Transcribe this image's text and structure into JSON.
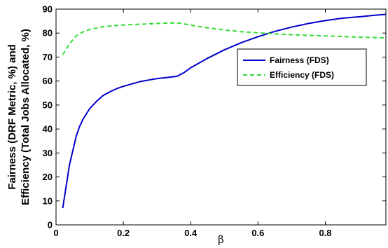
{
  "chart_data": {
    "type": "line",
    "xlabel": "β",
    "ylabel_lines": [
      "Fairness (DRF Metric, %) and",
      "Efficiency (Total Jobs Allocated, %)"
    ],
    "xlim": [
      0,
      0.98
    ],
    "ylim": [
      0,
      90
    ],
    "xticks": [
      0,
      0.2,
      0.4,
      0.6,
      0.8
    ],
    "xtick_labels": [
      "0",
      "0.2",
      "0.4",
      "0.6",
      "0.8"
    ],
    "yticks": [
      0,
      10,
      20,
      30,
      40,
      50,
      60,
      70,
      80,
      90
    ],
    "ytick_labels": [
      "0",
      "10",
      "20",
      "30",
      "40",
      "50",
      "60",
      "70",
      "80",
      "90"
    ],
    "grid": false,
    "legend_position": "right, upper-middle",
    "series": [
      {
        "name": "Fairness (FDS)",
        "color": "#0000cc",
        "style": "solid",
        "x": [
          0.02,
          0.03,
          0.04,
          0.05,
          0.06,
          0.07,
          0.08,
          0.1,
          0.12,
          0.14,
          0.16,
          0.18,
          0.2,
          0.25,
          0.3,
          0.35,
          0.36,
          0.38,
          0.4,
          0.45,
          0.5,
          0.55,
          0.6,
          0.65,
          0.7,
          0.75,
          0.8,
          0.85,
          0.9,
          0.95,
          0.98
        ],
        "y": [
          7,
          16,
          25,
          31,
          37,
          41,
          44,
          48.5,
          51.5,
          54,
          55.5,
          56.8,
          57.8,
          59.8,
          61,
          61.8,
          62,
          63.5,
          65.5,
          69.5,
          73,
          76,
          78.5,
          80.7,
          82.5,
          84,
          85.2,
          86.2,
          86.8,
          87.5,
          87.8
        ]
      },
      {
        "name": "Efficiency (FDS)",
        "color": "#33dd33",
        "style": "dashed",
        "x": [
          0.02,
          0.04,
          0.06,
          0.08,
          0.1,
          0.14,
          0.2,
          0.25,
          0.3,
          0.34,
          0.37,
          0.4,
          0.45,
          0.5,
          0.55,
          0.6,
          0.65,
          0.7,
          0.8,
          0.9,
          0.98
        ],
        "y": [
          71,
          75.5,
          78.8,
          80.5,
          81.5,
          82.7,
          83.4,
          83.7,
          84,
          84.2,
          84.1,
          83.3,
          82.2,
          81.3,
          80.6,
          80.1,
          79.7,
          79.3,
          78.8,
          78.3,
          78
        ]
      }
    ]
  }
}
